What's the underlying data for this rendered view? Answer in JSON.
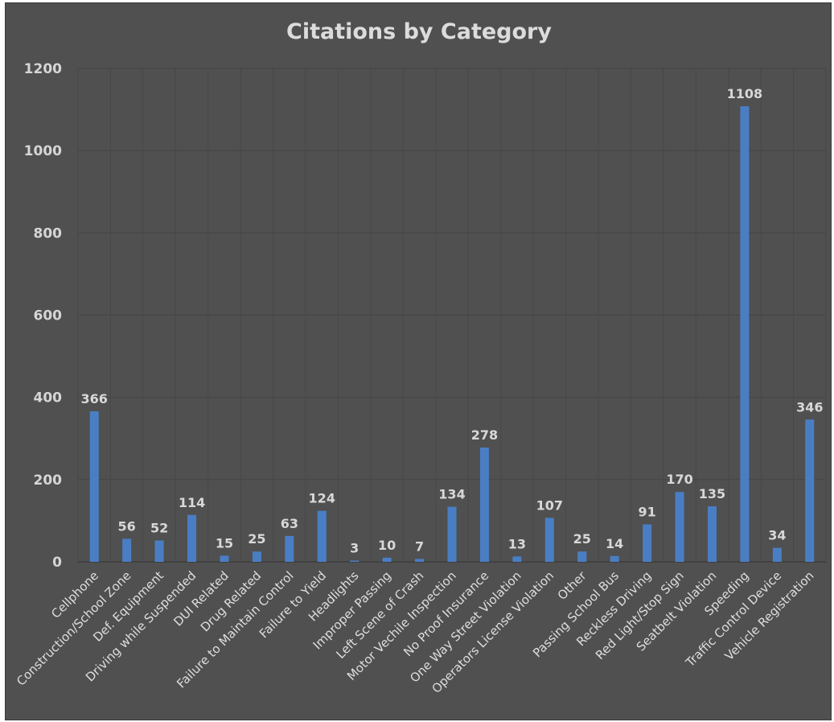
{
  "chart_data": {
    "type": "bar",
    "title": "Citations by Category",
    "xlabel": "",
    "ylabel": "",
    "ylim": [
      0,
      1200
    ],
    "yticks": [
      0,
      200,
      400,
      600,
      800,
      1000,
      1200
    ],
    "grid": true,
    "legend": "none",
    "categories": [
      "Cellphone",
      "Construction/School Zone",
      "Def.  Equipment",
      "Driving while Suspended",
      "DUI Related",
      "Drug Related",
      "Failure to Maintain Control",
      "Failure to Yield",
      "Headlights",
      "Improper Passing",
      "Left Scene of Crash",
      "Motor Vechile Inspection",
      "No Proof Insurance",
      "One Way Street Violation",
      "Operators License Violation",
      "Other",
      "Passing School Bus",
      "Reckless Driving",
      "Red Light/Stop Sign",
      "Seatbelt Violation",
      "Speeding",
      "Traffic Control Device",
      "Vehicle Registration"
    ],
    "values": [
      366,
      56,
      52,
      114,
      15,
      25,
      63,
      124,
      3,
      10,
      7,
      134,
      278,
      13,
      107,
      25,
      14,
      91,
      170,
      135,
      1108,
      34,
      346
    ],
    "colors": {
      "background": "#505050",
      "bar": "#4a7ec4",
      "grid": "#444444",
      "text": "#d8d8d8"
    }
  }
}
